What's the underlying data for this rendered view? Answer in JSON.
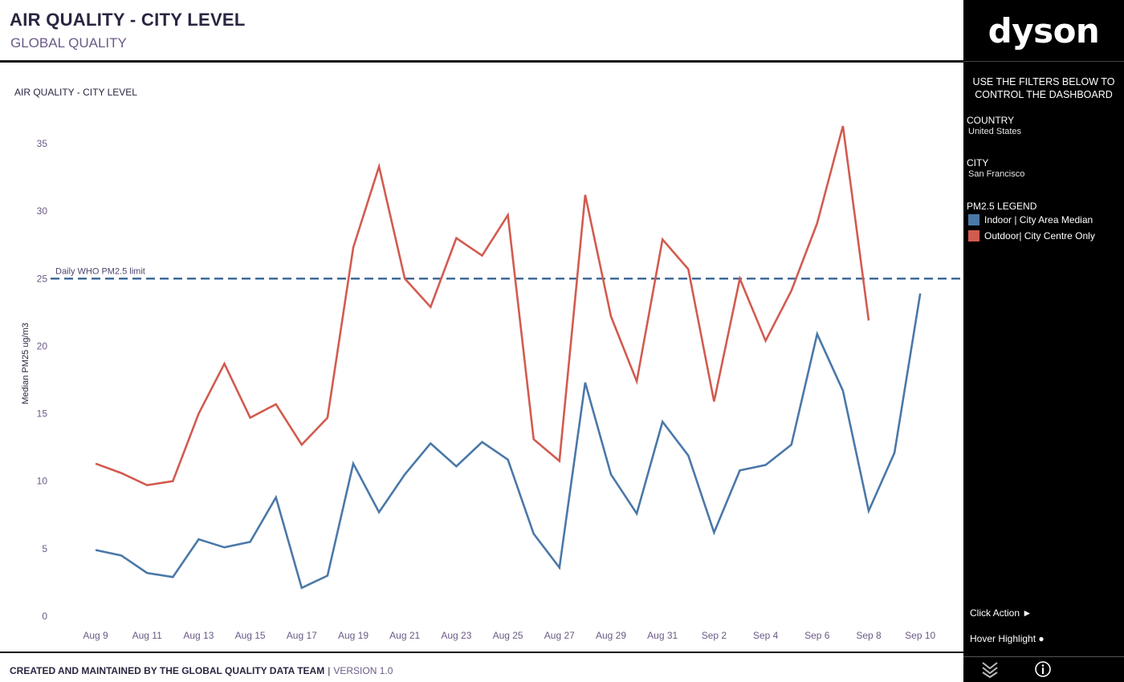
{
  "header": {
    "title": "AIR QUALITY - CITY LEVEL",
    "subtitle": "GLOBAL QUALITY"
  },
  "chart_title": "AIR QUALITY - CITY LEVEL",
  "reference_line_label": "Daily WHO PM2.5 limit",
  "footer": {
    "credit": "CREATED AND MAINTAINED BY THE GLOBAL QUALITY DATA TEAM",
    "separator": "|",
    "version": "VERSION 1.0"
  },
  "sidebar": {
    "logo": "dyson",
    "filter_hint": "USE THE FILTERS BELOW TO CONTROL THE DASHBOARD",
    "country_label": "COUNTRY",
    "country_value": "United States",
    "city_label": "CITY",
    "city_value": "San Francisco",
    "legend_title": "PM2.5 LEGEND",
    "legend": [
      {
        "label": "Indoor | City Area Median",
        "color": "#4a78a8"
      },
      {
        "label": "Outdoor| City Centre Only",
        "color": "#d25b4f"
      }
    ],
    "click_action": "Click Action ►",
    "hover_highlight": "Hover Highlight ●",
    "icons": [
      "chevron-stack-icon",
      "info-icon"
    ]
  },
  "chart_data": {
    "type": "line",
    "title": "AIR QUALITY - CITY LEVEL",
    "xlabel": "",
    "ylabel": "Median PM25 ug/m3",
    "ylim": [
      0,
      37
    ],
    "yticks": [
      0,
      5,
      10,
      15,
      20,
      25,
      30,
      35
    ],
    "x": [
      "Aug 9",
      "Aug 10",
      "Aug 11",
      "Aug 12",
      "Aug 13",
      "Aug 14",
      "Aug 15",
      "Aug 16",
      "Aug 17",
      "Aug 18",
      "Aug 19",
      "Aug 20",
      "Aug 21",
      "Aug 22",
      "Aug 23",
      "Aug 24",
      "Aug 25",
      "Aug 26",
      "Aug 27",
      "Aug 28",
      "Aug 29",
      "Aug 30",
      "Aug 31",
      "Sep 1",
      "Sep 2",
      "Sep 3",
      "Sep 4",
      "Sep 5",
      "Sep 6",
      "Sep 7",
      "Sep 8",
      "Sep 9",
      "Sep 10"
    ],
    "x_tick_labels": [
      "Aug 9",
      "Aug 11",
      "Aug 13",
      "Aug 15",
      "Aug 17",
      "Aug 19",
      "Aug 21",
      "Aug 23",
      "Aug 25",
      "Aug 27",
      "Aug 29",
      "Aug 31",
      "Sep 2",
      "Sep 4",
      "Sep 6",
      "Sep 8",
      "Sep 10"
    ],
    "reference_line": {
      "value": 25,
      "label": "Daily WHO PM2.5 limit",
      "color": "#3f6b98"
    },
    "series": [
      {
        "name": "Indoor | City Area Median",
        "color": "#4a78a8",
        "values": [
          4.9,
          4.5,
          3.2,
          2.9,
          5.7,
          5.1,
          5.5,
          8.8,
          2.1,
          3.0,
          11.3,
          7.7,
          10.5,
          12.8,
          11.1,
          12.9,
          11.6,
          6.1,
          3.6,
          17.3,
          10.5,
          7.6,
          14.4,
          11.9,
          6.2,
          10.8,
          11.2,
          12.7,
          20.9,
          16.7,
          7.8,
          12.1,
          23.9
        ]
      },
      {
        "name": "Outdoor| City Centre Only",
        "color": "#d25b4f",
        "values": [
          11.3,
          10.6,
          9.7,
          10.0,
          15.0,
          18.7,
          14.7,
          15.7,
          12.7,
          14.7,
          27.3,
          33.3,
          25.0,
          22.9,
          28.0,
          26.7,
          29.7,
          13.1,
          11.5,
          31.2,
          22.2,
          17.4,
          27.9,
          25.7,
          15.9,
          25.0,
          20.4,
          24.1,
          29.1,
          36.3,
          21.9,
          null,
          null
        ]
      }
    ],
    "legend_position": "right sidebar",
    "grid": false
  }
}
